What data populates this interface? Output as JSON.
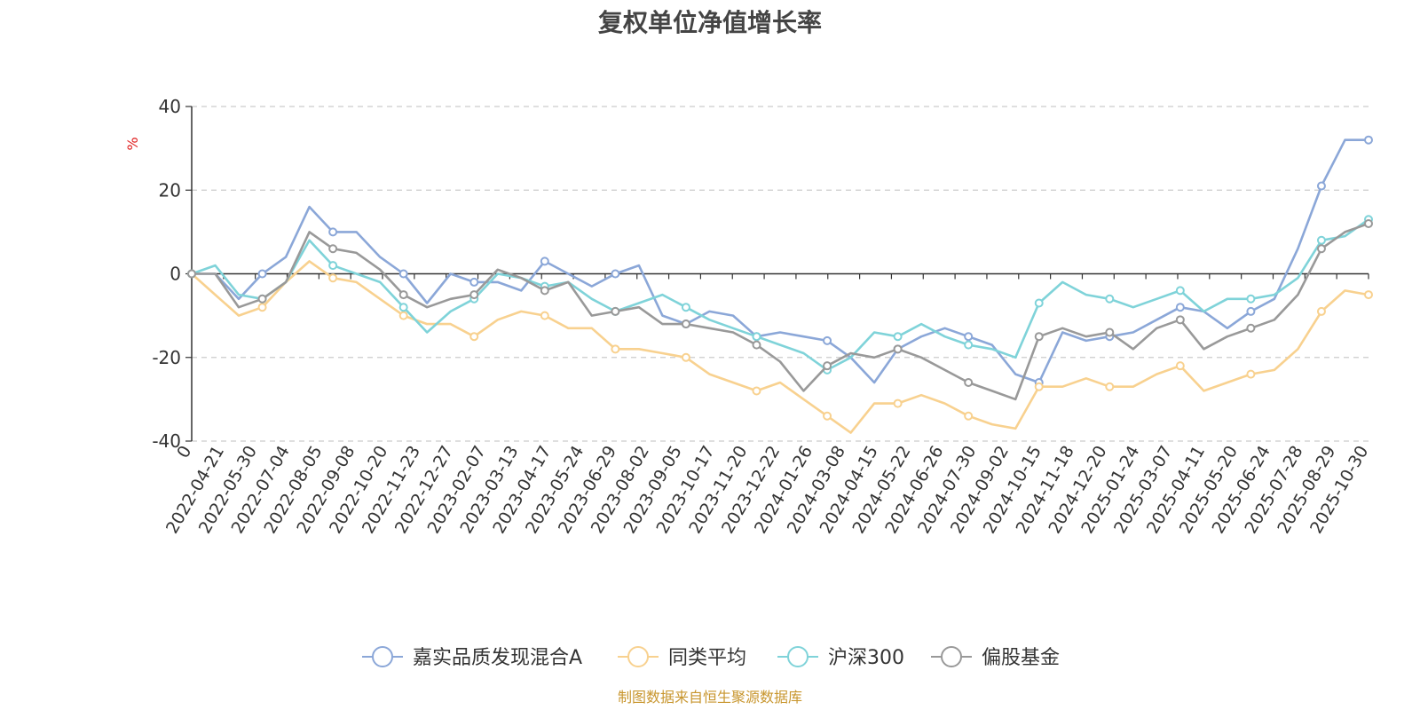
{
  "chart_data": {
    "type": "line",
    "title": "复权单位净值增长率",
    "ylabel": "%",
    "ylim": [
      -40,
      40
    ],
    "yticks": [
      "40",
      "20",
      "0",
      "-20",
      "-40"
    ],
    "ytick_values": [
      40,
      20,
      0,
      -20,
      -40
    ],
    "x_ticks": [
      "0",
      "2022-04-21",
      "2022-05-30",
      "2022-07-04",
      "2022-08-05",
      "2022-09-08",
      "2022-10-20",
      "2022-11-23",
      "2022-12-27",
      "2023-02-07",
      "2023-03-13",
      "2023-04-17",
      "2023-05-24",
      "2023-06-29",
      "2023-08-02",
      "2023-09-05",
      "2023-10-17",
      "2023-11-20",
      "2023-12-22",
      "2024-01-26",
      "2024-03-08",
      "2024-04-15",
      "2024-05-22",
      "2024-06-26",
      "2024-07-30",
      "2024-09-02",
      "2024-10-15",
      "2024-11-18",
      "2024-12-20",
      "2025-01-24",
      "2025-03-07",
      "2025-04-11",
      "2025-05-20",
      "2025-06-24",
      "2025-07-28",
      "2025-08-29",
      "2025-10-30"
    ],
    "grid": "horizontal-dashed",
    "legend_position": "bottom",
    "series": [
      {
        "name": "嘉实品质发现混合A",
        "color": "#8ba7d8",
        "values": [
          0,
          0,
          -6,
          0,
          4,
          16,
          10,
          10,
          4,
          0,
          -7,
          0,
          -2,
          -2,
          -4,
          3,
          0,
          -3,
          0,
          2,
          -10,
          -12,
          -9,
          -10,
          -15,
          -14,
          -15,
          -16,
          -20,
          -26,
          -18,
          -15,
          -13,
          -15,
          -17,
          -24,
          -26,
          -14,
          -16,
          -15,
          -14,
          -11,
          -8,
          -9,
          -13,
          -9,
          -6,
          6,
          21,
          32,
          32
        ]
      },
      {
        "name": "同类平均",
        "color": "#f8d18f",
        "values": [
          0,
          -5,
          -10,
          -8,
          -2,
          3,
          -1,
          -2,
          -6,
          -10,
          -12,
          -12,
          -15,
          -11,
          -9,
          -10,
          -13,
          -13,
          -18,
          -18,
          -19,
          -20,
          -24,
          -26,
          -28,
          -26,
          -30,
          -34,
          -38,
          -31,
          -31,
          -29,
          -31,
          -34,
          -36,
          -37,
          -27,
          -27,
          -25,
          -27,
          -27,
          -24,
          -22,
          -28,
          -26,
          -24,
          -23,
          -18,
          -9,
          -4,
          -5
        ]
      },
      {
        "name": "沪深300",
        "color": "#7fd3d9",
        "values": [
          0,
          2,
          -5,
          -6,
          -2,
          8,
          2,
          0,
          -2,
          -8,
          -14,
          -9,
          -6,
          0,
          -1,
          -3,
          -2,
          -6,
          -9,
          -7,
          -5,
          -8,
          -11,
          -13,
          -15,
          -17,
          -19,
          -23,
          -20,
          -14,
          -15,
          -12,
          -15,
          -17,
          -18,
          -20,
          -7,
          -2,
          -5,
          -6,
          -8,
          -6,
          -4,
          -9,
          -6,
          -6,
          -5,
          -1,
          8,
          9,
          13
        ]
      },
      {
        "name": "偏股基金",
        "color": "#999999",
        "values": [
          0,
          0,
          -8,
          -6,
          -2,
          10,
          6,
          5,
          1,
          -5,
          -8,
          -6,
          -5,
          1,
          -1,
          -4,
          -2,
          -10,
          -9,
          -8,
          -12,
          -12,
          -13,
          -14,
          -17,
          -21,
          -28,
          -22,
          -19,
          -20,
          -18,
          -20,
          -23,
          -26,
          -28,
          -30,
          -15,
          -13,
          -15,
          -14,
          -18,
          -13,
          -11,
          -18,
          -15,
          -13,
          -11,
          -5,
          6,
          10,
          12
        ]
      }
    ]
  },
  "footer": {
    "source": "制图数据来自恒生聚源数据库"
  }
}
